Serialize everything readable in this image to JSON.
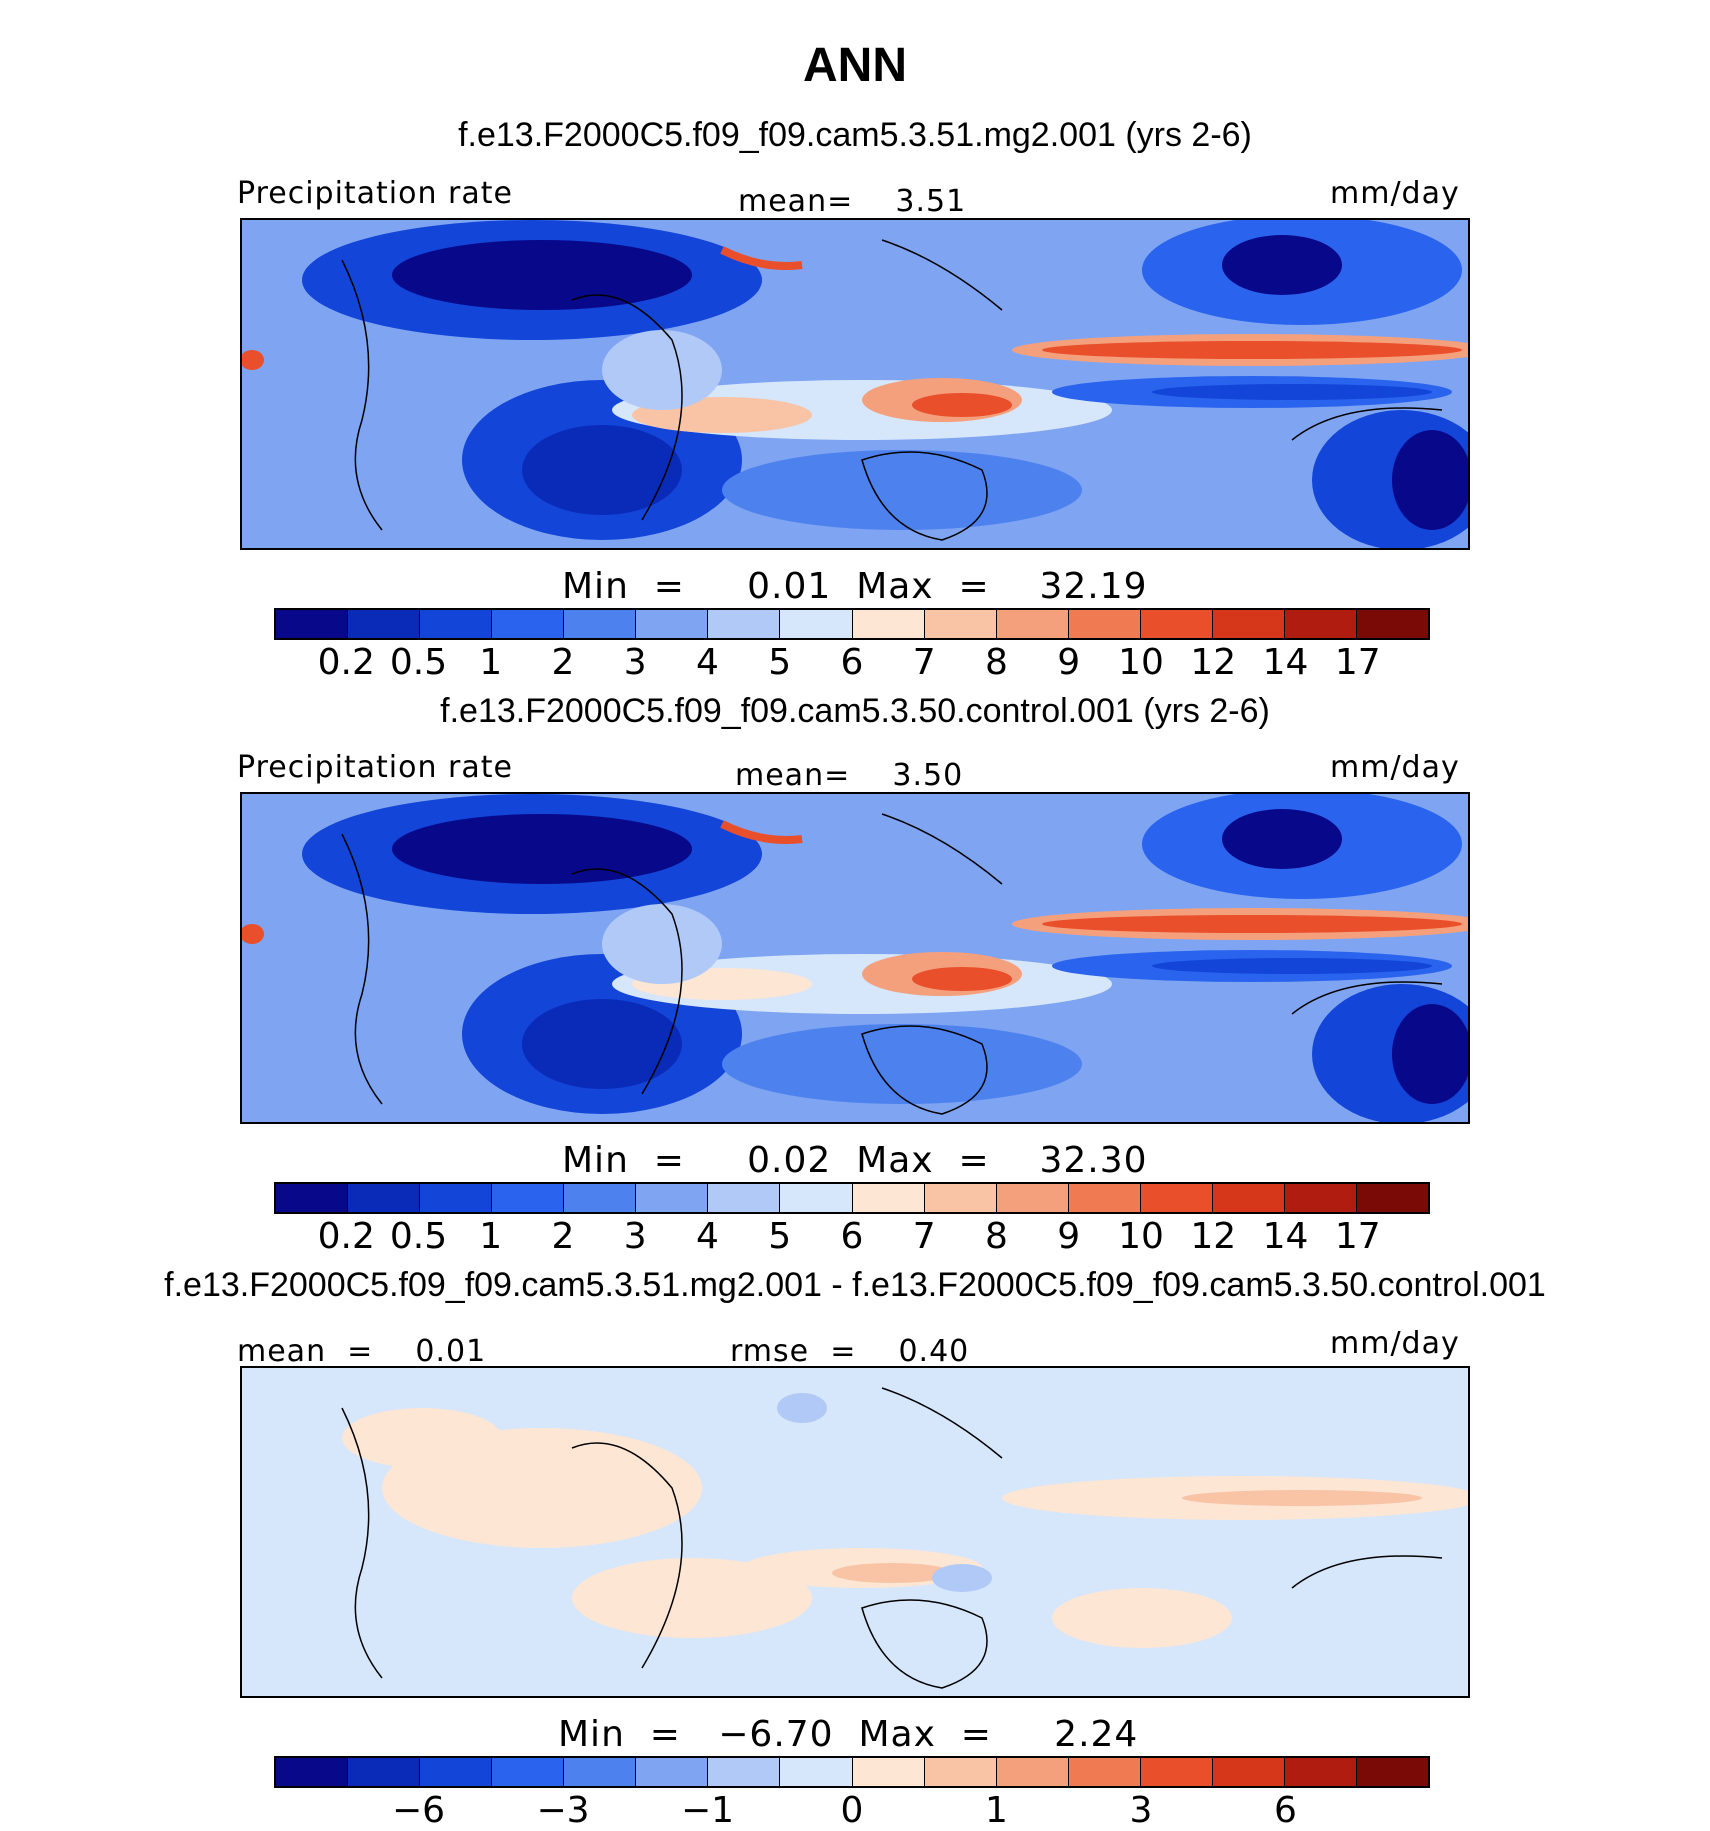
{
  "title": "ANN",
  "colors": {
    "abs_palette": [
      "#08088a",
      "#0a2ab8",
      "#1245d8",
      "#2a64ee",
      "#4d82ee",
      "#7ea4f2",
      "#b0c9f7",
      "#d6e6fb",
      "#fde6d4",
      "#f9c3a6",
      "#f5a07d",
      "#f07a52",
      "#e94f2b",
      "#d6361a",
      "#b01d10",
      "#7a0a06"
    ],
    "diff_palette": [
      "#08088a",
      "#0a2ab8",
      "#1245d8",
      "#2a64ee",
      "#4d82ee",
      "#7ea4f2",
      "#b0c9f7",
      "#d6e6fb",
      "#fde6d4",
      "#f9c3a6",
      "#f5a07d",
      "#f07a52",
      "#e94f2b",
      "#d6361a",
      "#b01d10",
      "#7a0a06"
    ]
  },
  "panels": [
    {
      "case": "f.e13.F2000C5.f09_f09.cam5.3.51.mg2.001 (yrs 2-6)",
      "left_label": "Precipitation rate",
      "center_label": "mean=    3.51",
      "units": "mm/day",
      "minmax": "Min  =     0.01  Max  =    32.19",
      "ticks": [
        "0.2",
        "0.5",
        "1",
        "2",
        "3",
        "4",
        "5",
        "6",
        "7",
        "8",
        "9",
        "10",
        "12",
        "14",
        "17"
      ]
    },
    {
      "case": "f.e13.F2000C5.f09_f09.cam5.3.50.control.001 (yrs 2-6)",
      "left_label": "Precipitation rate",
      "center_label": "mean=    3.50",
      "units": "mm/day",
      "minmax": "Min  =     0.02  Max  =    32.30",
      "ticks": [
        "0.2",
        "0.5",
        "1",
        "2",
        "3",
        "4",
        "5",
        "6",
        "7",
        "8",
        "9",
        "10",
        "12",
        "14",
        "17"
      ]
    },
    {
      "case": "f.e13.F2000C5.f09_f09.cam5.3.51.mg2.001 - f.e13.F2000C5.f09_f09.cam5.3.50.control.001",
      "left_label": "mean  =    0.01",
      "center_label": "rmse  =    0.40",
      "units": "mm/day",
      "minmax": "Min  =   −6.70  Max  =     2.24",
      "ticks": [
        "−6",
        "−3",
        "−1",
        "0",
        "1",
        "3",
        "6"
      ]
    }
  ],
  "chart_data": [
    {
      "type": "heatmap",
      "title": "f.e13.F2000C5.f09_f09.cam5.3.51.mg2.001 (yrs 2-6)",
      "variable": "Precipitation rate",
      "units": "mm/day",
      "mean": 3.51,
      "min": 0.01,
      "max": 32.19,
      "contour_levels": [
        0.2,
        0.5,
        1,
        2,
        3,
        4,
        5,
        6,
        7,
        8,
        9,
        10,
        12,
        14,
        17
      ]
    },
    {
      "type": "heatmap",
      "title": "f.e13.F2000C5.f09_f09.cam5.3.50.control.001 (yrs 2-6)",
      "variable": "Precipitation rate",
      "units": "mm/day",
      "mean": 3.5,
      "min": 0.02,
      "max": 32.3,
      "contour_levels": [
        0.2,
        0.5,
        1,
        2,
        3,
        4,
        5,
        6,
        7,
        8,
        9,
        10,
        12,
        14,
        17
      ]
    },
    {
      "type": "heatmap",
      "title": "f.e13.F2000C5.f09_f09.cam5.3.51.mg2.001 - f.e13.F2000C5.f09_f09.cam5.3.50.control.001",
      "units": "mm/day",
      "mean": 0.01,
      "rmse": 0.4,
      "min": -6.7,
      "max": 2.24,
      "tick_labels": [
        -6,
        -3,
        -1,
        0,
        1,
        3,
        6
      ]
    }
  ]
}
